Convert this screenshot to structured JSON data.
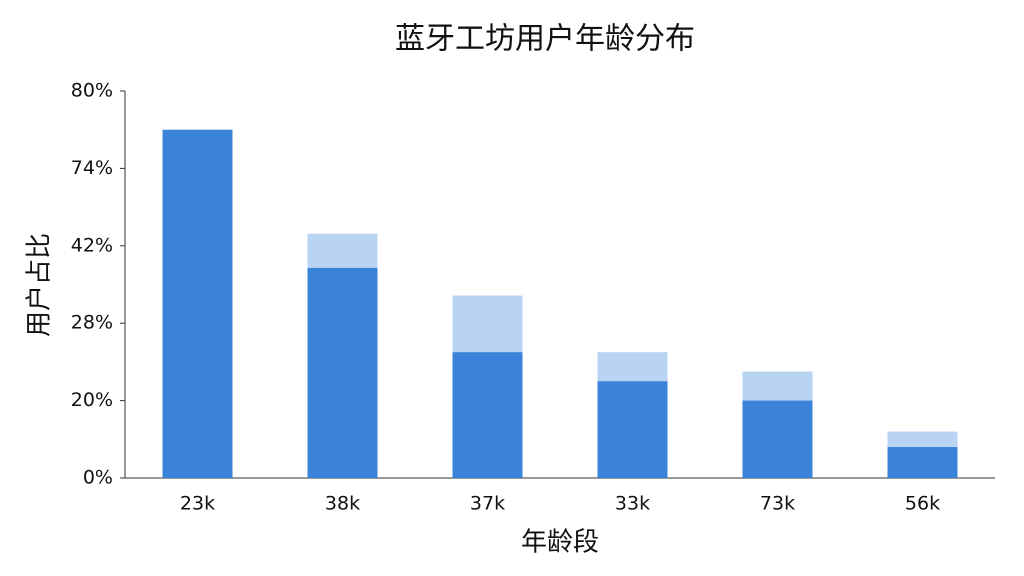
{
  "chart_data": {
    "type": "bar",
    "title": "蓝牙工坊用户年龄分布",
    "x_label": "年龄段",
    "y_label": "用户占比",
    "categories": [
      "23k",
      "38k",
      "37k",
      "33k",
      "73k",
      "56k"
    ],
    "series": [
      {
        "color": "#b9d3f2",
        "values": [
          null,
          47,
          33,
          25,
          23,
          12
        ]
      },
      {
        "color": "#3b82d9",
        "values": [
          77,
          38,
          25,
          22,
          20,
          8
        ]
      }
    ],
    "ylim": [
      0,
      80
    ],
    "yticks": [
      {
        "value": 0,
        "label": "0%"
      },
      {
        "value": 20,
        "label": "20%"
      },
      {
        "value": 28,
        "label": "28%"
      },
      {
        "value": 42,
        "label": "42%"
      },
      {
        "value": 74,
        "label": "74%"
      },
      {
        "value": 80,
        "label": "80%"
      }
    ]
  }
}
